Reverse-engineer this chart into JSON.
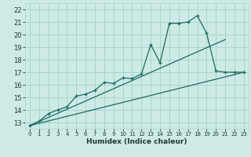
{
  "xlabel": "Humidex (Indice chaleur)",
  "background_color": "#cdeae6",
  "grid_color": "#aad4ce",
  "line_color": "#1a6b5a",
  "xlim": [
    -0.5,
    23.5
  ],
  "ylim": [
    12.5,
    22.5
  ],
  "xticks": [
    0,
    1,
    2,
    3,
    4,
    5,
    6,
    7,
    8,
    9,
    10,
    11,
    12,
    13,
    14,
    15,
    16,
    17,
    18,
    19,
    20,
    21,
    22,
    23
  ],
  "yticks": [
    13,
    14,
    15,
    16,
    17,
    18,
    19,
    20,
    21,
    22
  ],
  "line1_x": [
    0,
    1,
    2,
    3,
    4,
    5,
    6,
    7,
    8,
    9,
    10,
    11,
    12,
    13,
    14,
    15,
    16,
    17,
    18,
    19,
    20,
    21,
    22,
    23
  ],
  "line1_y": [
    12.75,
    13.1,
    13.7,
    14.0,
    14.25,
    15.1,
    15.25,
    15.55,
    16.2,
    16.1,
    16.55,
    16.5,
    16.85,
    19.2,
    17.75,
    20.9,
    20.9,
    21.0,
    21.5,
    20.1,
    17.1,
    17.0,
    17.0,
    17.0
  ],
  "line2_x": [
    0,
    21
  ],
  "line2_y": [
    12.75,
    19.6
  ],
  "line3_x": [
    0,
    23
  ],
  "line3_y": [
    12.75,
    17.0
  ]
}
